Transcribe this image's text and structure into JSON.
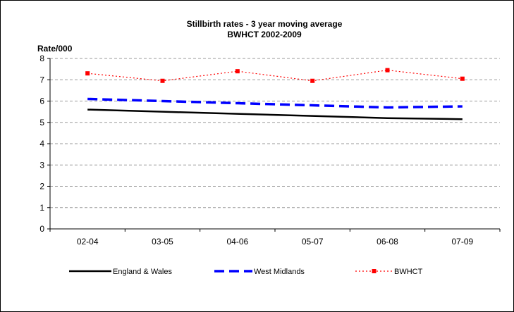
{
  "chart_data": {
    "type": "line",
    "title": "Stillbirth rates - 3 year moving average",
    "subtitle": "BWHCT 2002-2009",
    "ylabel": "Rate/000",
    "xlabel": "",
    "categories": [
      "02-04",
      "03-05",
      "04-06",
      "05-07",
      "06-08",
      "07-09"
    ],
    "ylim": [
      0,
      8
    ],
    "yticks": [
      0,
      1,
      2,
      3,
      4,
      5,
      6,
      7,
      8
    ],
    "grid": "horizontal-dashed",
    "legend": "bottom",
    "series": [
      {
        "name": "England & Wales",
        "values": [
          5.6,
          5.5,
          5.4,
          5.3,
          5.2,
          5.15
        ],
        "color": "#000000",
        "style": "solid"
      },
      {
        "name": "West Midlands",
        "values": [
          6.1,
          6.0,
          5.9,
          5.8,
          5.7,
          5.75
        ],
        "color": "#0000FF",
        "style": "dashed"
      },
      {
        "name": "BWHCT",
        "values": [
          7.3,
          6.95,
          7.4,
          6.95,
          7.45,
          7.05
        ],
        "color": "#FF0000",
        "style": "dotted-square"
      }
    ]
  }
}
